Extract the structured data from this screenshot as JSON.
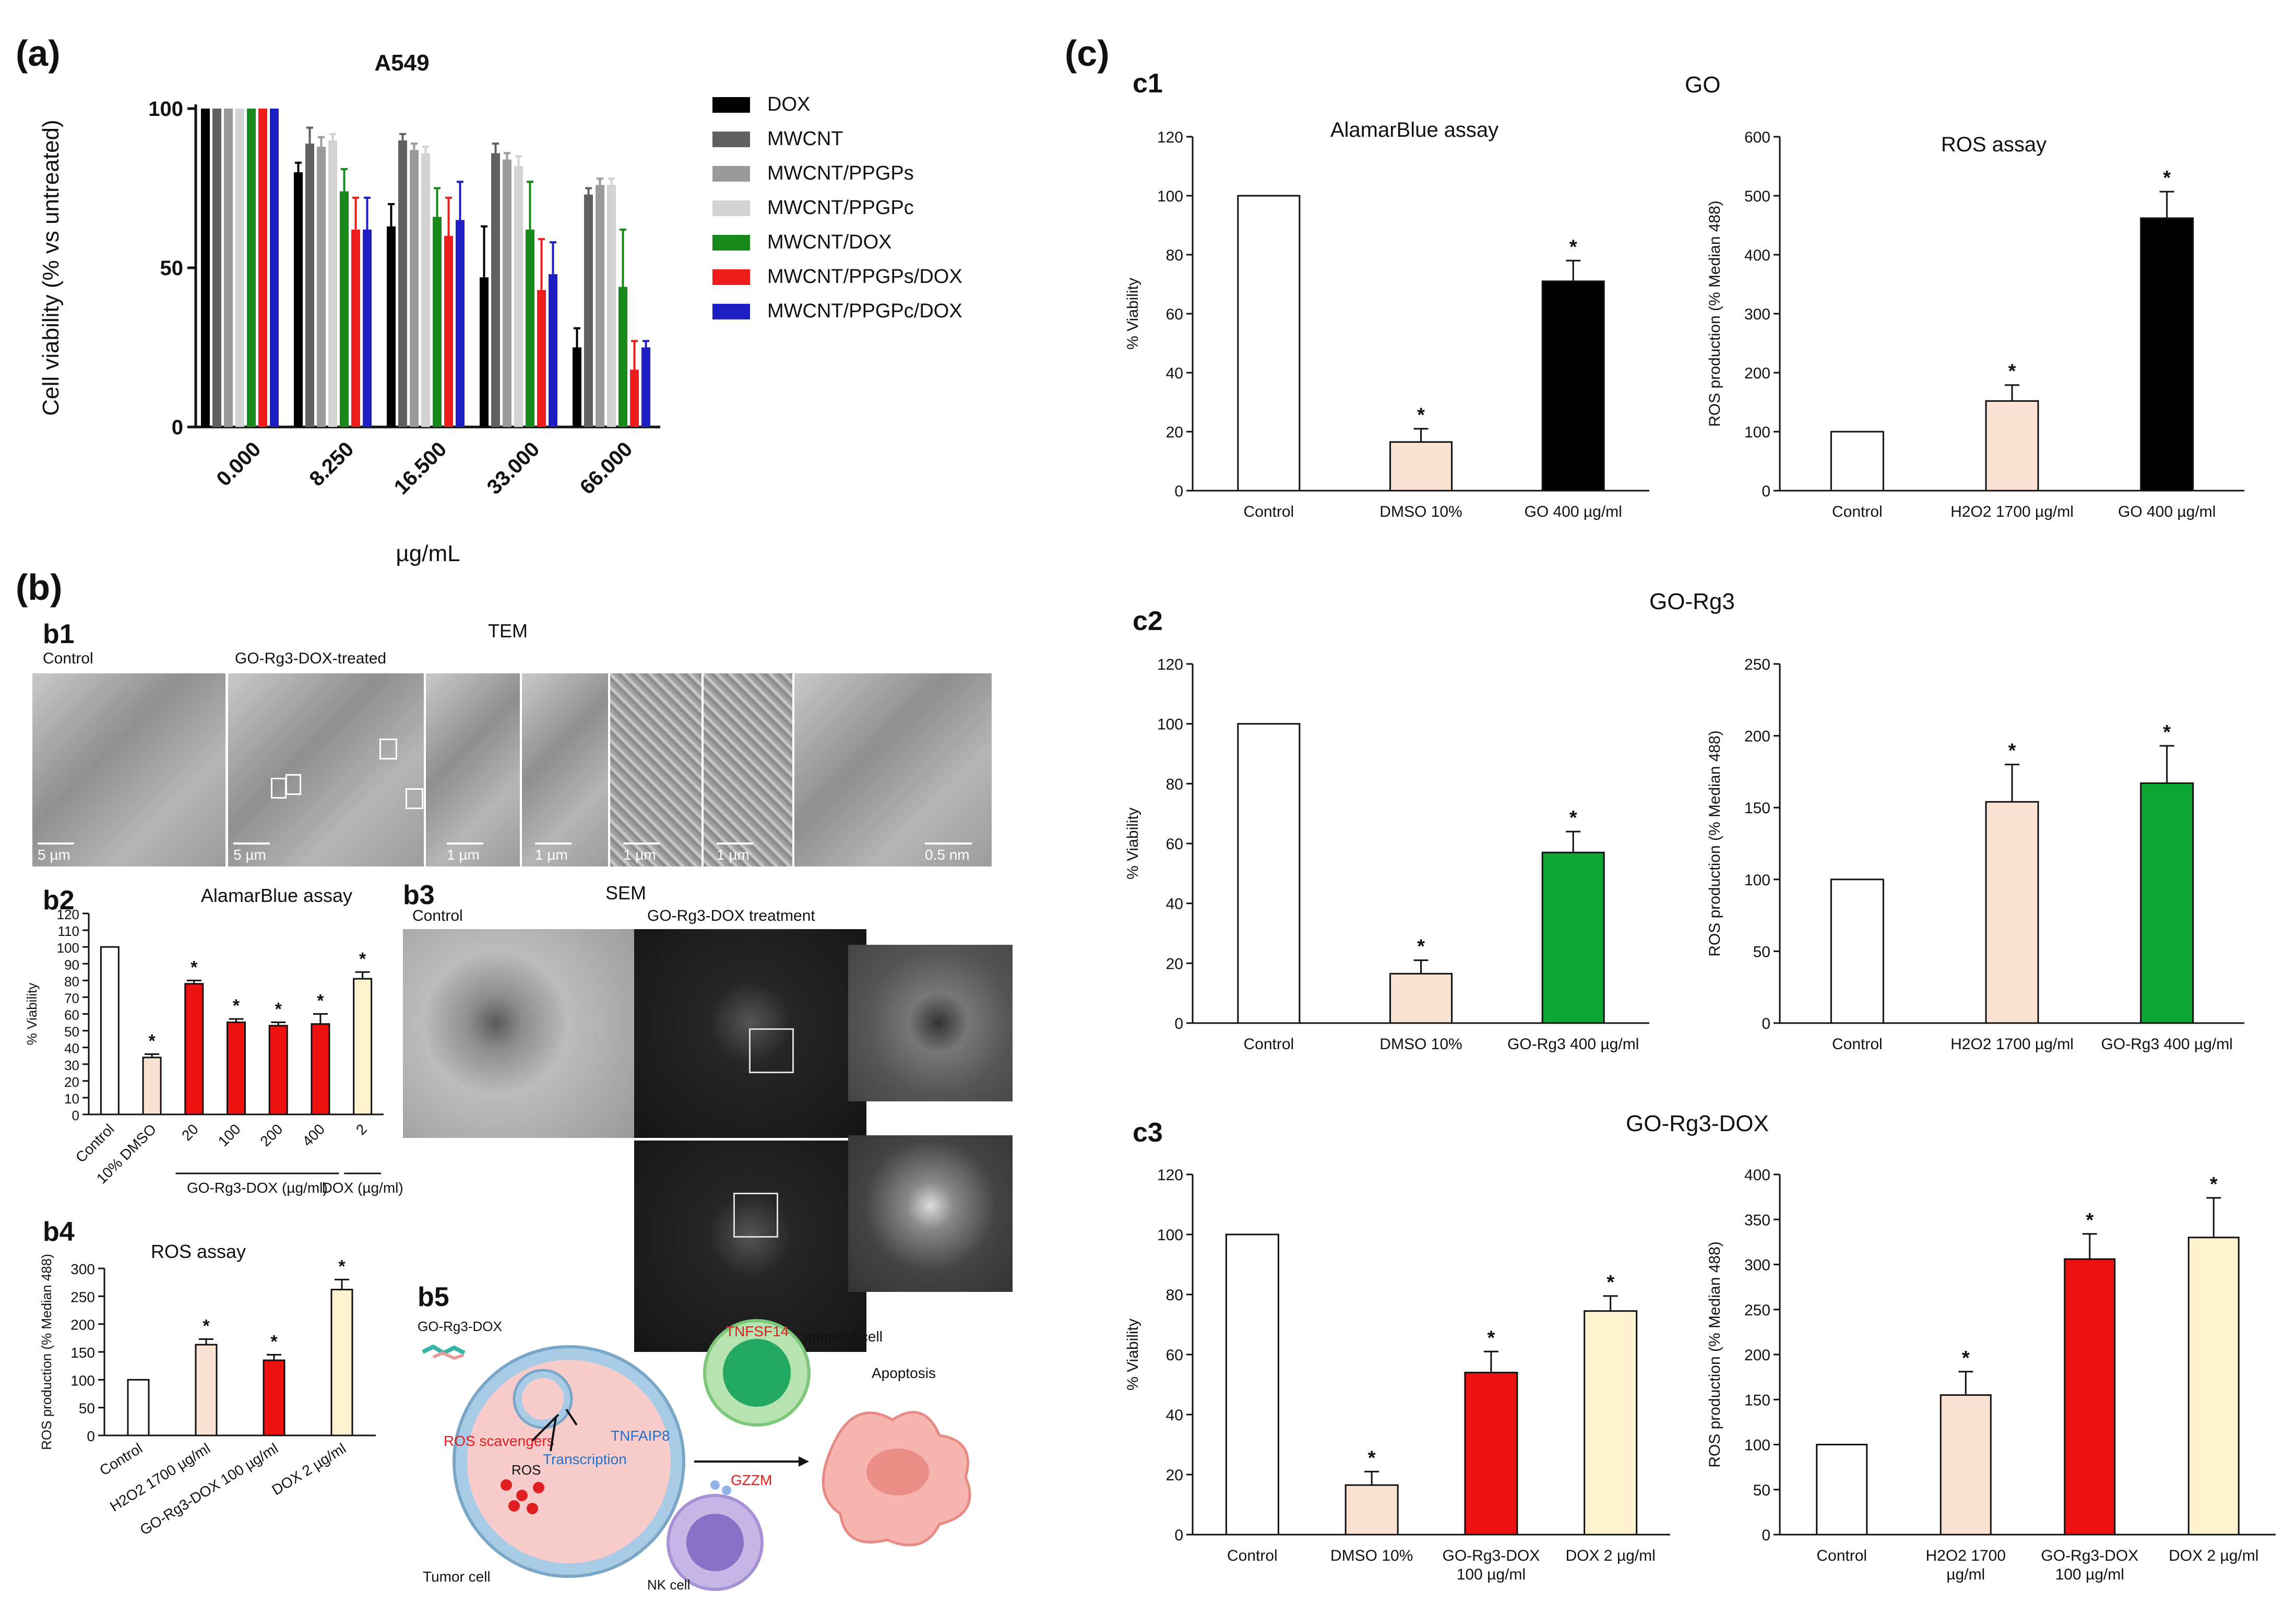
{
  "panels": {
    "a": "(a)",
    "b": "(b)",
    "c": "(c)",
    "b1": "b1",
    "b2": "b2",
    "b3": "b3",
    "b4": "b4",
    "b5": "b5",
    "c1": "c1",
    "c2": "c2",
    "c3": "c3"
  },
  "c_group_titles": {
    "c1": "GO",
    "c2": "GO-Rg3",
    "c3": "GO-Rg3-DOX"
  },
  "tem": {
    "title": "TEM",
    "control_label": "Control",
    "treated_label": "GO-Rg3-DOX-treated",
    "scales": [
      "5 µm",
      "5 µm",
      "1 µm",
      "1 µm",
      "1 µm",
      "1 µm",
      "0.5 nm"
    ]
  },
  "sem": {
    "title": "SEM",
    "control_label": "Control",
    "treated_label": "GO-Rg3-DOX treatment"
  },
  "b5": {
    "godox": "GO-Rg3-DOX",
    "immune_cell": "Immune cell",
    "tnfsf14": "TNFSF14",
    "apoptosis": "Apoptosis",
    "ros_scavengers": "ROS scavengers",
    "ros": "ROS",
    "transcription": "Transcription",
    "tnfaip8": "TNFAIP8",
    "gzzm": "GZZM",
    "tumor_cell": "Tumor cell",
    "nk_cell": "NK cell"
  },
  "chart_data": [
    {
      "id": "a",
      "type": "bar",
      "title": "A549",
      "xlabel": "µg/mL",
      "ylabel": "Cell viability (% vs untreated)",
      "ylim": [
        0,
        100
      ],
      "yticks": [
        0,
        50,
        100
      ],
      "categories": [
        "0.000",
        "8.250",
        "16.500",
        "33.000",
        "66.000"
      ],
      "legend_position": "right",
      "series": [
        {
          "name": "DOX",
          "color": "#000000",
          "values": [
            100,
            80,
            63,
            47,
            25
          ],
          "errors": [
            0,
            3,
            7,
            16,
            6
          ]
        },
        {
          "name": "MWCNT",
          "color": "#616161",
          "values": [
            100,
            89,
            90,
            86,
            73
          ],
          "errors": [
            0,
            5,
            2,
            3,
            2
          ]
        },
        {
          "name": "MWCNT/PPGPs",
          "color": "#9a9a9a",
          "values": [
            100,
            88,
            87,
            84,
            76
          ],
          "errors": [
            0,
            3,
            2,
            2,
            2
          ]
        },
        {
          "name": "MWCNT/PPGPc",
          "color": "#d2d2d2",
          "values": [
            100,
            90,
            86,
            82,
            76
          ],
          "errors": [
            0,
            2,
            2,
            3,
            2
          ]
        },
        {
          "name": "MWCNT/DOX",
          "color": "#17891b",
          "values": [
            100,
            74,
            66,
            62,
            44
          ],
          "errors": [
            0,
            7,
            9,
            15,
            18
          ]
        },
        {
          "name": "MWCNT/PPGPs/DOX",
          "color": "#ef1c1c",
          "values": [
            100,
            62,
            60,
            43,
            18
          ],
          "errors": [
            0,
            10,
            12,
            16,
            9
          ]
        },
        {
          "name": "MWCNT/PPGPc/DOX",
          "color": "#1f1fc4",
          "values": [
            100,
            62,
            65,
            48,
            25
          ],
          "errors": [
            0,
            10,
            12,
            10,
            2
          ]
        }
      ]
    },
    {
      "id": "b2",
      "type": "bar",
      "title": "AlamarBlue assay",
      "ylabel": "% Viability",
      "ylim": [
        0,
        120
      ],
      "yticks": [
        0,
        10,
        20,
        30,
        40,
        50,
        60,
        70,
        80,
        90,
        100,
        110,
        120
      ],
      "categories": [
        "Control",
        "10% DMSO",
        "20",
        "100",
        "200",
        "400",
        "2"
      ],
      "group_labels": [
        "GO-Rg3-DOX (µg/ml)",
        "DOX (µg/ml)"
      ],
      "values": [
        100,
        34,
        78,
        55,
        53,
        54,
        81
      ],
      "errors": [
        0,
        2,
        2,
        2,
        2,
        6,
        4
      ],
      "colors": [
        "#ffffff",
        "#fbe3d4",
        "#ee1111",
        "#ee1111",
        "#ee1111",
        "#ee1111",
        "#fff3cf"
      ],
      "significant": [
        false,
        true,
        true,
        true,
        true,
        true,
        true
      ]
    },
    {
      "id": "b4",
      "type": "bar",
      "title": "ROS assay",
      "ylabel": "ROS production (% Median 488)",
      "ylim": [
        0,
        300
      ],
      "yticks": [
        0,
        50,
        100,
        150,
        200,
        250,
        300
      ],
      "categories": [
        "Control",
        "H2O2 1700 µg/ml",
        "GO-Rg3-DOX 100 µg/ml",
        "DOX 2 µg/ml"
      ],
      "values": [
        100,
        163,
        135,
        262
      ],
      "errors": [
        0,
        10,
        10,
        18
      ],
      "colors": [
        "#ffffff",
        "#fbe3d4",
        "#ee1111",
        "#fff3cf"
      ],
      "significant": [
        false,
        true,
        true,
        true
      ]
    },
    {
      "id": "c1-alamar",
      "type": "bar",
      "title": "AlamarBlue assay",
      "ylabel": "% Viability",
      "ylim": [
        0,
        120
      ],
      "yticks": [
        0,
        20,
        40,
        60,
        80,
        100,
        120
      ],
      "categories": [
        "Control",
        "DMSO 10%",
        "GO 400 µg/ml"
      ],
      "values": [
        100,
        16.5,
        71
      ],
      "errors": [
        0,
        4.5,
        7
      ],
      "colors": [
        "#ffffff",
        "#fbe3d4",
        "#000000"
      ],
      "significant": [
        false,
        true,
        true
      ]
    },
    {
      "id": "c1-ros",
      "type": "bar",
      "title": "ROS assay",
      "ylabel": "ROS production (% Median 488)",
      "ylim": [
        0,
        600
      ],
      "yticks": [
        0,
        100,
        200,
        300,
        400,
        500,
        600
      ],
      "categories": [
        "Control",
        "H2O2 1700 µg/ml",
        "GO 400 µg/ml"
      ],
      "values": [
        100,
        152,
        462
      ],
      "errors": [
        0,
        27,
        45
      ],
      "colors": [
        "#ffffff",
        "#fbe3d4",
        "#000000"
      ],
      "significant": [
        false,
        true,
        true
      ]
    },
    {
      "id": "c2-alamar",
      "type": "bar",
      "ylabel": "% Viability",
      "ylim": [
        0,
        120
      ],
      "yticks": [
        0,
        20,
        40,
        60,
        80,
        100,
        120
      ],
      "categories": [
        "Control",
        "DMSO 10%",
        "GO-Rg3 400 µg/ml"
      ],
      "values": [
        100,
        16.5,
        57
      ],
      "errors": [
        0,
        4.5,
        7
      ],
      "colors": [
        "#ffffff",
        "#fbe3d4",
        "#0ea635"
      ],
      "significant": [
        false,
        true,
        true
      ]
    },
    {
      "id": "c2-ros",
      "type": "bar",
      "ylabel": "ROS production (% Median 488)",
      "ylim": [
        0,
        250
      ],
      "yticks": [
        0,
        50,
        100,
        150,
        200,
        250
      ],
      "categories": [
        "Control",
        "H2O2 1700 µg/ml",
        "GO-Rg3 400 µg/ml"
      ],
      "values": [
        100,
        154,
        167
      ],
      "errors": [
        0,
        26,
        26
      ],
      "colors": [
        "#ffffff",
        "#fbe3d4",
        "#0ea635"
      ],
      "significant": [
        false,
        true,
        true
      ]
    },
    {
      "id": "c3-alamar",
      "type": "bar",
      "ylabel": "% Viability",
      "ylim": [
        0,
        120
      ],
      "yticks": [
        0,
        20,
        40,
        60,
        80,
        100,
        120
      ],
      "categories": [
        "Control",
        "DMSO 10%",
        "GO-Rg3-DOX 100 µg/ml",
        "DOX 2 µg/ml"
      ],
      "values": [
        100,
        16.5,
        54,
        74.5
      ],
      "errors": [
        0,
        4.5,
        7,
        5
      ],
      "colors": [
        "#ffffff",
        "#fbe3d4",
        "#ee1111",
        "#fff3cf"
      ],
      "significant": [
        false,
        true,
        true,
        true
      ]
    },
    {
      "id": "c3-ros",
      "type": "bar",
      "ylabel": "ROS production (% Median 488)",
      "ylim": [
        0,
        400
      ],
      "yticks": [
        0,
        50,
        100,
        150,
        200,
        250,
        300,
        350,
        400
      ],
      "categories": [
        "Control",
        "H2O2 1700 µg/ml",
        "GO-Rg3-DOX 100 µg/ml",
        "DOX 2 µg/ml"
      ],
      "values": [
        100,
        155,
        306,
        330
      ],
      "errors": [
        0,
        26,
        28,
        44
      ],
      "colors": [
        "#ffffff",
        "#fbe3d4",
        "#ee1111",
        "#fff3cf"
      ],
      "significant": [
        false,
        true,
        true,
        true
      ]
    }
  ]
}
